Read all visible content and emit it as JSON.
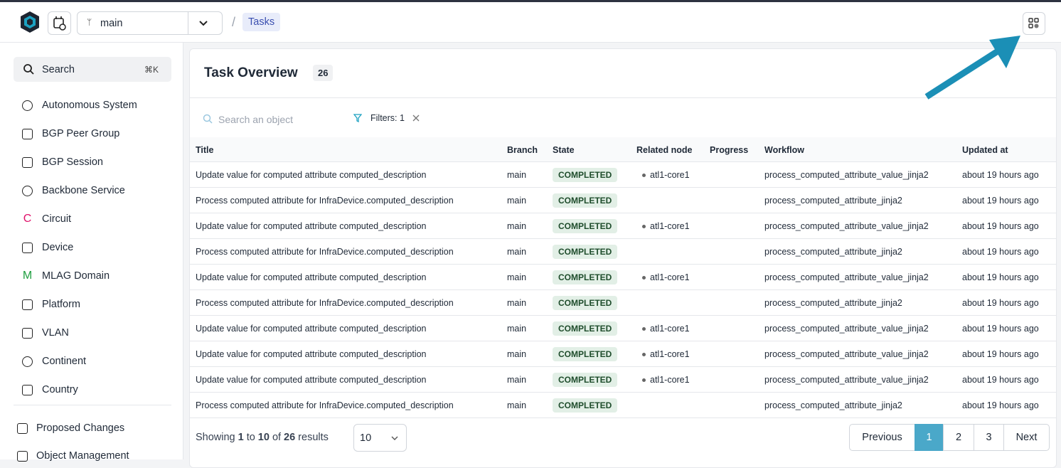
{
  "header": {
    "branch": "main",
    "breadcrumb_separator": "/",
    "breadcrumb": "Tasks"
  },
  "sidebar": {
    "search": "Search",
    "shortcut": "⌘K",
    "items": [
      {
        "label": "Autonomous System"
      },
      {
        "label": "BGP Peer Group"
      },
      {
        "label": "BGP Session"
      },
      {
        "label": "Backbone Service"
      },
      {
        "label": "Circuit",
        "badge": "C"
      },
      {
        "label": "Device"
      },
      {
        "label": "MLAG Domain",
        "badge": "M"
      },
      {
        "label": "Platform"
      },
      {
        "label": "VLAN"
      },
      {
        "label": "Continent"
      },
      {
        "label": "Country"
      }
    ],
    "bottom_items": [
      {
        "label": "Proposed Changes"
      },
      {
        "label": "Object Management"
      }
    ]
  },
  "main": {
    "title": "Task Overview",
    "count": "26",
    "search_placeholder": "Search an object",
    "filters": "Filters: 1",
    "table": {
      "columns": [
        "Title",
        "Branch",
        "State",
        "Related node",
        "Progress",
        "Workflow",
        "Updated at"
      ],
      "rows": [
        {
          "title": "Update value for computed attribute computed_description",
          "branch": "main",
          "state": "COMPLETED",
          "related_node": "atl1-core1",
          "workflow": "process_computed_attribute_value_jinja2",
          "updated_at": "about 19 hours ago"
        },
        {
          "title": "Process computed attribute for InfraDevice.computed_description",
          "branch": "main",
          "state": "COMPLETED",
          "related_node": null,
          "workflow": "process_computed_attribute_jinja2",
          "updated_at": "about 19 hours ago"
        },
        {
          "title": "Update value for computed attribute computed_description",
          "branch": "main",
          "state": "COMPLETED",
          "related_node": "atl1-core1",
          "workflow": "process_computed_attribute_value_jinja2",
          "updated_at": "about 19 hours ago"
        },
        {
          "title": "Process computed attribute for InfraDevice.computed_description",
          "branch": "main",
          "state": "COMPLETED",
          "related_node": null,
          "workflow": "process_computed_attribute_jinja2",
          "updated_at": "about 19 hours ago"
        },
        {
          "title": "Update value for computed attribute computed_description",
          "branch": "main",
          "state": "COMPLETED",
          "related_node": "atl1-core1",
          "workflow": "process_computed_attribute_value_jinja2",
          "updated_at": "about 19 hours ago"
        },
        {
          "title": "Process computed attribute for InfraDevice.computed_description",
          "branch": "main",
          "state": "COMPLETED",
          "related_node": null,
          "workflow": "process_computed_attribute_jinja2",
          "updated_at": "about 19 hours ago"
        },
        {
          "title": "Update value for computed attribute computed_description",
          "branch": "main",
          "state": "COMPLETED",
          "related_node": "atl1-core1",
          "workflow": "process_computed_attribute_value_jinja2",
          "updated_at": "about 19 hours ago"
        },
        {
          "title": "Update value for computed attribute computed_description",
          "branch": "main",
          "state": "COMPLETED",
          "related_node": "atl1-core1",
          "workflow": "process_computed_attribute_value_jinja2",
          "updated_at": "about 19 hours ago"
        },
        {
          "title": "Update value for computed attribute computed_description",
          "branch": "main",
          "state": "COMPLETED",
          "related_node": "atl1-core1",
          "workflow": "process_computed_attribute_value_jinja2",
          "updated_at": "about 19 hours ago"
        },
        {
          "title": "Process computed attribute for InfraDevice.computed_description",
          "branch": "main",
          "state": "COMPLETED",
          "related_node": null,
          "workflow": "process_computed_attribute_jinja2",
          "updated_at": "about 19 hours ago"
        }
      ]
    },
    "footer": {
      "showing": "Showing",
      "from": "1",
      "to_word": "to",
      "to": "10",
      "of_word": "of",
      "total": "26",
      "results": "results",
      "page_size": "10",
      "pages": [
        "Previous",
        "1",
        "2",
        "3",
        "Next"
      ],
      "active_page": 1
    }
  }
}
